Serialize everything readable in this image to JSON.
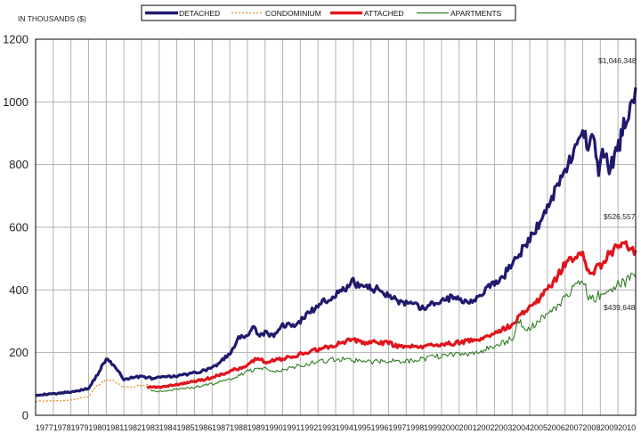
{
  "chart_data": {
    "type": "line",
    "ylabel": "IN THOUSANDS ($)",
    "ylim": [
      0,
      1200
    ],
    "yticks": [
      "0",
      "200",
      "400",
      "600",
      "800",
      "1000",
      "1200"
    ],
    "x_tick_labels": [
      "1977",
      "1978",
      "1979",
      "1980",
      "1981",
      "1982",
      "1983",
      "1984",
      "1985",
      "1986",
      "1987",
      "1988",
      "1989",
      "1990",
      "1991",
      "1992",
      "1993",
      "1994",
      "1995",
      "1996",
      "1997",
      "1998",
      "1999",
      "2000",
      "2001",
      "2002",
      "2003",
      "2004",
      "2005",
      "2006",
      "2007",
      "2008",
      "2009",
      "2010"
    ],
    "grid": true,
    "legend_position": "top-center",
    "annotations": [
      "$1,046,348",
      "$526,557",
      "$439,648"
    ],
    "series": [
      {
        "name": "DETACHED",
        "color": "#1f1a6e",
        "style": "solid-thick",
        "x": [
          1977.0,
          1978.0,
          1979.0,
          1980.0,
          1980.6,
          1981.0,
          1981.4,
          1982.0,
          1982.5,
          1983.0,
          1983.5,
          1984.0,
          1985.0,
          1986.0,
          1987.0,
          1988.0,
          1988.5,
          1989.0,
          1989.3,
          1989.7,
          1990.0,
          1990.5,
          1991.0,
          1991.5,
          1992.0,
          1992.5,
          1993.0,
          1993.5,
          1994.0,
          1994.5,
          1995.0,
          1995.5,
          1996.0,
          1996.5,
          1997.0,
          1997.5,
          1998.0,
          1998.5,
          1999.0,
          1999.5,
          2000.0,
          2000.5,
          2001.0,
          2001.5,
          2002.0,
          2002.5,
          2003.0,
          2003.5,
          2004.0,
          2004.5,
          2005.0,
          2005.5,
          2006.0,
          2006.5,
          2007.0,
          2007.5,
          2008.0,
          2008.3,
          2008.6,
          2008.9,
          2009.2,
          2009.5,
          2009.8,
          2010.1,
          2010.4,
          2010.6,
          2010.8,
          2011.0
        ],
        "y": [
          65,
          68,
          75,
          85,
          140,
          180,
          160,
          115,
          120,
          125,
          118,
          120,
          125,
          135,
          150,
          195,
          245,
          255,
          280,
          255,
          265,
          250,
          290,
          285,
          300,
          330,
          345,
          370,
          385,
          400,
          425,
          410,
          405,
          400,
          385,
          365,
          355,
          350,
          340,
          355,
          365,
          375,
          370,
          365,
          375,
          400,
          420,
          440,
          490,
          520,
          560,
          610,
          660,
          730,
          790,
          830,
          910,
          860,
          900,
          780,
          840,
          790,
          820,
          870,
          940,
          970,
          1000,
          1046
        ]
      },
      {
        "name": "CONDOMINIUM",
        "color": "#e08a1e",
        "style": "dotted",
        "x": [
          1977.0,
          1978.0,
          1979.0,
          1980.0,
          1980.5,
          1981.0,
          1981.4,
          1982.0,
          1983.0,
          1983.6
        ],
        "y": [
          45,
          46,
          48,
          60,
          95,
          115,
          110,
          90,
          95,
          95
        ]
      },
      {
        "name": "ATTACHED",
        "color": "#e0141c",
        "style": "solid-thick",
        "x": [
          1983.3,
          1984.0,
          1985.0,
          1986.0,
          1987.0,
          1988.0,
          1989.0,
          1989.6,
          1990.0,
          1990.5,
          1991.0,
          1992.0,
          1993.0,
          1994.0,
          1994.5,
          1995.0,
          1995.5,
          1996.0,
          1997.0,
          1997.5,
          1998.0,
          1999.0,
          2000.0,
          2001.0,
          2002.0,
          2003.0,
          2004.0,
          2004.5,
          2005.0,
          2005.5,
          2006.0,
          2006.5,
          2007.0,
          2007.5,
          2008.0,
          2008.4,
          2008.8,
          2009.2,
          2009.6,
          2010.0,
          2010.3,
          2010.6,
          2011.0
        ],
        "y": [
          88,
          90,
          97,
          108,
          120,
          140,
          160,
          185,
          170,
          175,
          180,
          195,
          210,
          225,
          235,
          240,
          230,
          235,
          230,
          222,
          218,
          220,
          225,
          232,
          240,
          260,
          290,
          320,
          345,
          370,
          400,
          440,
          480,
          500,
          510,
          450,
          470,
          490,
          520,
          540,
          560,
          540,
          526
        ]
      },
      {
        "name": "APARTMENTS",
        "color": "#2e7d22",
        "style": "solid-thin",
        "x": [
          1983.5,
          1984.0,
          1985.0,
          1986.0,
          1987.0,
          1988.0,
          1989.0,
          1990.0,
          1990.5,
          1991.0,
          1992.0,
          1993.0,
          1994.0,
          1995.0,
          1996.0,
          1997.0,
          1998.0,
          1999.0,
          2000.0,
          2001.0,
          2002.0,
          2003.0,
          2004.0,
          2004.4,
          2004.7,
          2005.0,
          2006.0,
          2007.0,
          2007.5,
          2008.0,
          2008.4,
          2008.8,
          2009.2,
          2009.6,
          2010.0,
          2010.5,
          2011.0
        ],
        "y": [
          80,
          75,
          82,
          90,
          100,
          115,
          140,
          155,
          140,
          145,
          160,
          170,
          180,
          175,
          170,
          175,
          172,
          180,
          190,
          195,
          200,
          220,
          245,
          300,
          270,
          280,
          320,
          370,
          410,
          430,
          370,
          380,
          390,
          400,
          420,
          430,
          439
        ]
      }
    ]
  }
}
